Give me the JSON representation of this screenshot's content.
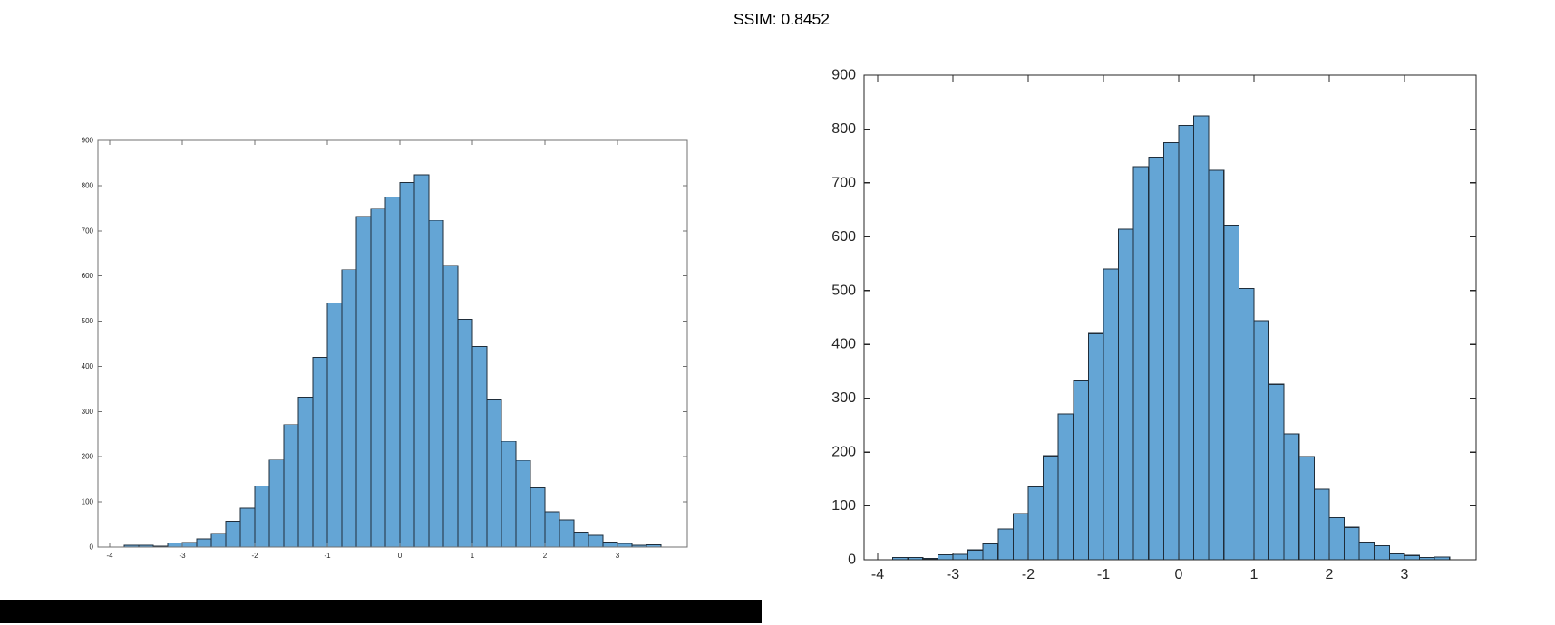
{
  "title": "SSIM: 0.8452",
  "colors": {
    "bar_fill": "#64A5D5",
    "bar_edge": "#1F2D3A",
    "axis_dark": "#262626",
    "axis_light": "#707070",
    "tick_label": "#262626",
    "redaction": "#000000",
    "background": "#ffffff"
  },
  "chart_data": [
    {
      "type": "bar",
      "role": "small-reference-histogram",
      "title": "",
      "xlabel": "",
      "ylabel": "",
      "grid": false,
      "legend": null,
      "bin_start": -3.8,
      "bin_width": 0.2,
      "values": [
        4,
        4,
        2,
        9,
        10,
        18,
        30,
        57,
        86,
        136,
        193,
        271,
        332,
        420,
        540,
        614,
        730,
        748,
        775,
        807,
        824,
        723,
        622,
        504,
        444,
        326,
        234,
        192,
        131,
        78,
        60,
        33,
        26,
        11,
        8,
        4,
        5
      ],
      "xticks": [
        -4,
        -3,
        -2,
        -1,
        0,
        1,
        2,
        3
      ],
      "yticks": [
        0,
        100,
        200,
        300,
        400,
        500,
        600,
        700,
        800,
        900
      ],
      "xlim": [
        -4.17,
        3.96
      ],
      "ylim": [
        0,
        900
      ]
    },
    {
      "type": "bar",
      "role": "large-comparison-histogram",
      "title": "",
      "xlabel": "",
      "ylabel": "",
      "grid": false,
      "legend": null,
      "bin_start": -3.8,
      "bin_width": 0.2,
      "values": [
        4,
        4,
        2,
        9,
        10,
        18,
        30,
        57,
        86,
        136,
        193,
        271,
        332,
        420,
        540,
        614,
        730,
        748,
        775,
        807,
        824,
        723,
        622,
        504,
        444,
        326,
        234,
        192,
        131,
        78,
        60,
        33,
        26,
        11,
        8,
        4,
        5
      ],
      "xticks": [
        -4,
        -3,
        -2,
        -1,
        0,
        1,
        2,
        3
      ],
      "yticks": [
        0,
        100,
        200,
        300,
        400,
        500,
        600,
        700,
        800,
        900
      ],
      "xlim": [
        -4.18,
        3.95
      ],
      "ylim": [
        0,
        900
      ]
    }
  ]
}
